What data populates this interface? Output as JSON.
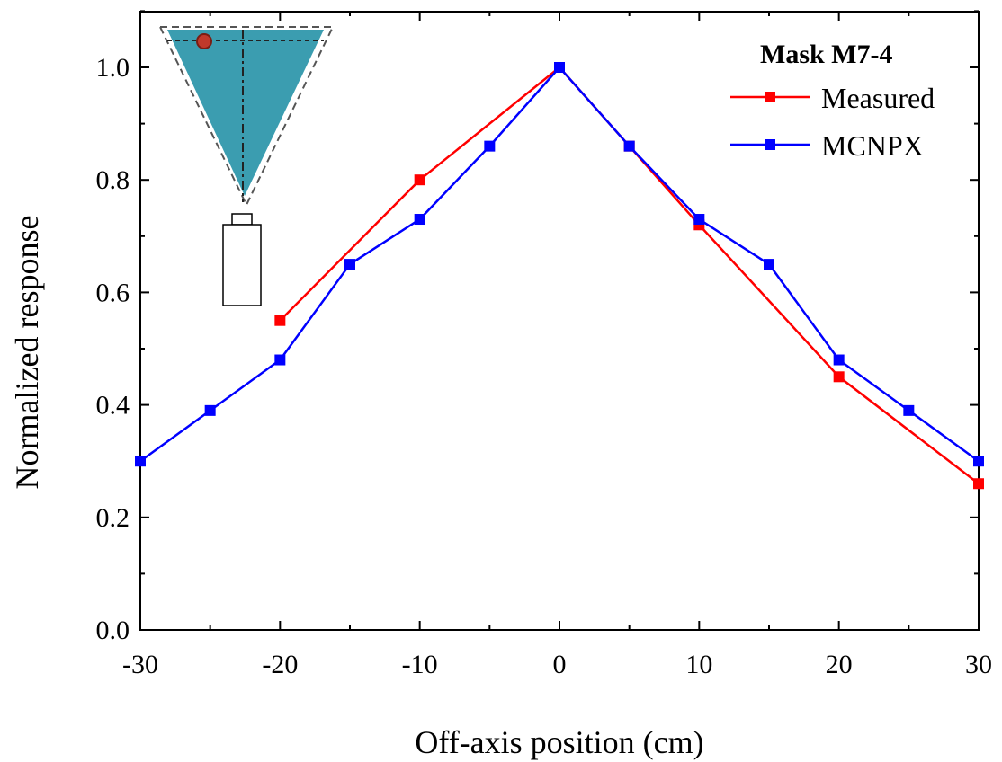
{
  "chart_data": {
    "type": "line",
    "xlabel": "Off-axis position (cm)",
    "ylabel": "Normalized response",
    "xlim": [
      -30,
      30
    ],
    "ylim": [
      0,
      1.1
    ],
    "x_ticks": [
      -30,
      -20,
      -10,
      0,
      10,
      20,
      30
    ],
    "x_tick_labels": [
      "-30",
      "-20",
      "-10",
      "0",
      "10",
      "20",
      "30"
    ],
    "y_ticks": [
      0,
      0.2,
      0.4,
      0.6,
      0.8,
      1.0
    ],
    "y_tick_labels": [
      "0.0",
      "0.2",
      "0.4",
      "0.6",
      "0.8",
      "1.0"
    ],
    "grid": false,
    "legend": {
      "title": "Mask M7-4",
      "placement": "top-right"
    },
    "series": [
      {
        "name": "Measured",
        "color": "#ff0000",
        "marker": "square",
        "x": [
          -20,
          -10,
          0,
          5,
          10,
          20,
          30
        ],
        "y": [
          0.55,
          0.8,
          1.0,
          0.86,
          0.72,
          0.45,
          0.26
        ]
      },
      {
        "name": "MCNPX",
        "color": "#0000ff",
        "marker": "square",
        "x": [
          -30,
          -25,
          -20,
          -15,
          -10,
          -5,
          0,
          5,
          10,
          15,
          20,
          25,
          30
        ],
        "y": [
          0.3,
          0.39,
          0.48,
          0.65,
          0.73,
          0.86,
          1.0,
          0.86,
          0.73,
          0.65,
          0.48,
          0.39,
          0.3
        ]
      }
    ],
    "inset": {
      "description_icon": "detector-collimator-cone-icon",
      "cone_color": "#3b9db0"
    }
  }
}
